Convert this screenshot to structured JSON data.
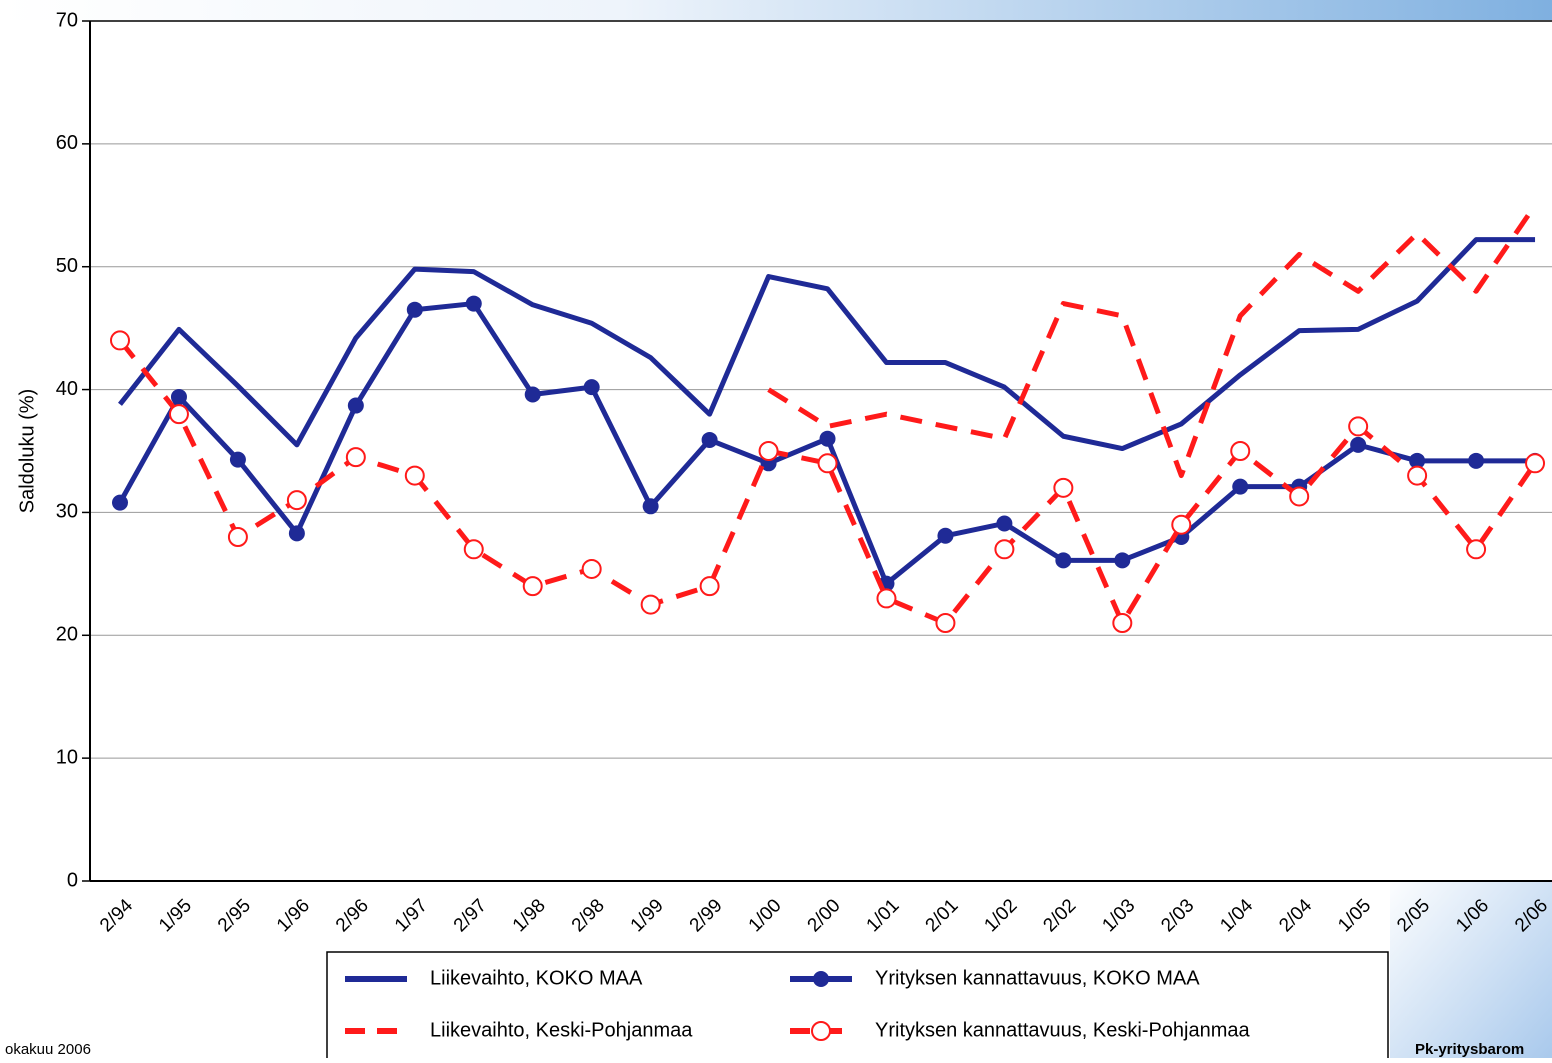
{
  "chart_data": {
    "type": "line",
    "y_label": "Saldoluku (%)",
    "categories": [
      "2/94",
      "1/95",
      "2/95",
      "1/96",
      "2/96",
      "1/97",
      "2/97",
      "1/98",
      "2/98",
      "1/99",
      "2/99",
      "1/00",
      "2/00",
      "1/01",
      "2/01",
      "1/02",
      "2/02",
      "1/03",
      "2/03",
      "1/04",
      "2/04",
      "1/05",
      "2/05",
      "1/06",
      "2/06"
    ],
    "series": [
      {
        "name": "Liikevaihto, KOKO MAA",
        "color": "#1f2a96",
        "dash": false,
        "marker": "none",
        "values": [
          38.8,
          44.9,
          40.3,
          35.5,
          44.2,
          49.8,
          49.6,
          46.9,
          45.4,
          42.6,
          38.0,
          49.2,
          48.2,
          42.2,
          42.2,
          40.2,
          36.2,
          35.2,
          37.2,
          41.2,
          44.8,
          44.9,
          47.2,
          52.2,
          52.2
        ]
      },
      {
        "name": "Yrityksen kannattavuus, KOKO MAA",
        "color": "#1f2a96",
        "dash": false,
        "marker": "dot",
        "values": [
          30.8,
          39.4,
          34.3,
          28.3,
          38.7,
          46.5,
          47.0,
          39.6,
          40.2,
          30.5,
          35.9,
          34.0,
          36.0,
          24.2,
          28.1,
          29.1,
          26.1,
          26.1,
          28.0,
          32.1,
          32.1,
          35.5,
          34.2,
          34.2,
          34.2
        ]
      },
      {
        "name": "Liikevaihto, Keski-Pohjanmaa",
        "color": "#ff1a1a",
        "dash": true,
        "marker": "none",
        "values": [
          null,
          null,
          null,
          null,
          null,
          null,
          null,
          null,
          null,
          null,
          null,
          40.0,
          37.0,
          38.0,
          37.0,
          36.0,
          47.0,
          46.0,
          33.0,
          46.0,
          51.0,
          48.0,
          52.7,
          48.0,
          55.0
        ]
      },
      {
        "name": "Yrityksen kannattavuus, Keski-Pohjanmaa",
        "color": "#ff1a1a",
        "dash": true,
        "marker": "circle",
        "values": [
          44.0,
          38.0,
          28.0,
          31.0,
          34.5,
          33.0,
          27.0,
          24.0,
          25.4,
          22.5,
          24.0,
          35.0,
          34.0,
          23.0,
          21.0,
          27.0,
          32.0,
          21.0,
          29.0,
          35.0,
          31.3,
          37.0,
          33.0,
          27.0,
          34.0
        ]
      }
    ],
    "ylim": [
      0,
      70
    ],
    "yticks": [
      0,
      10,
      20,
      30,
      40,
      50,
      60,
      70
    ],
    "grid": true,
    "footer_left": "okakuu 2006",
    "footer_right": "Pk-yritysbarom"
  }
}
